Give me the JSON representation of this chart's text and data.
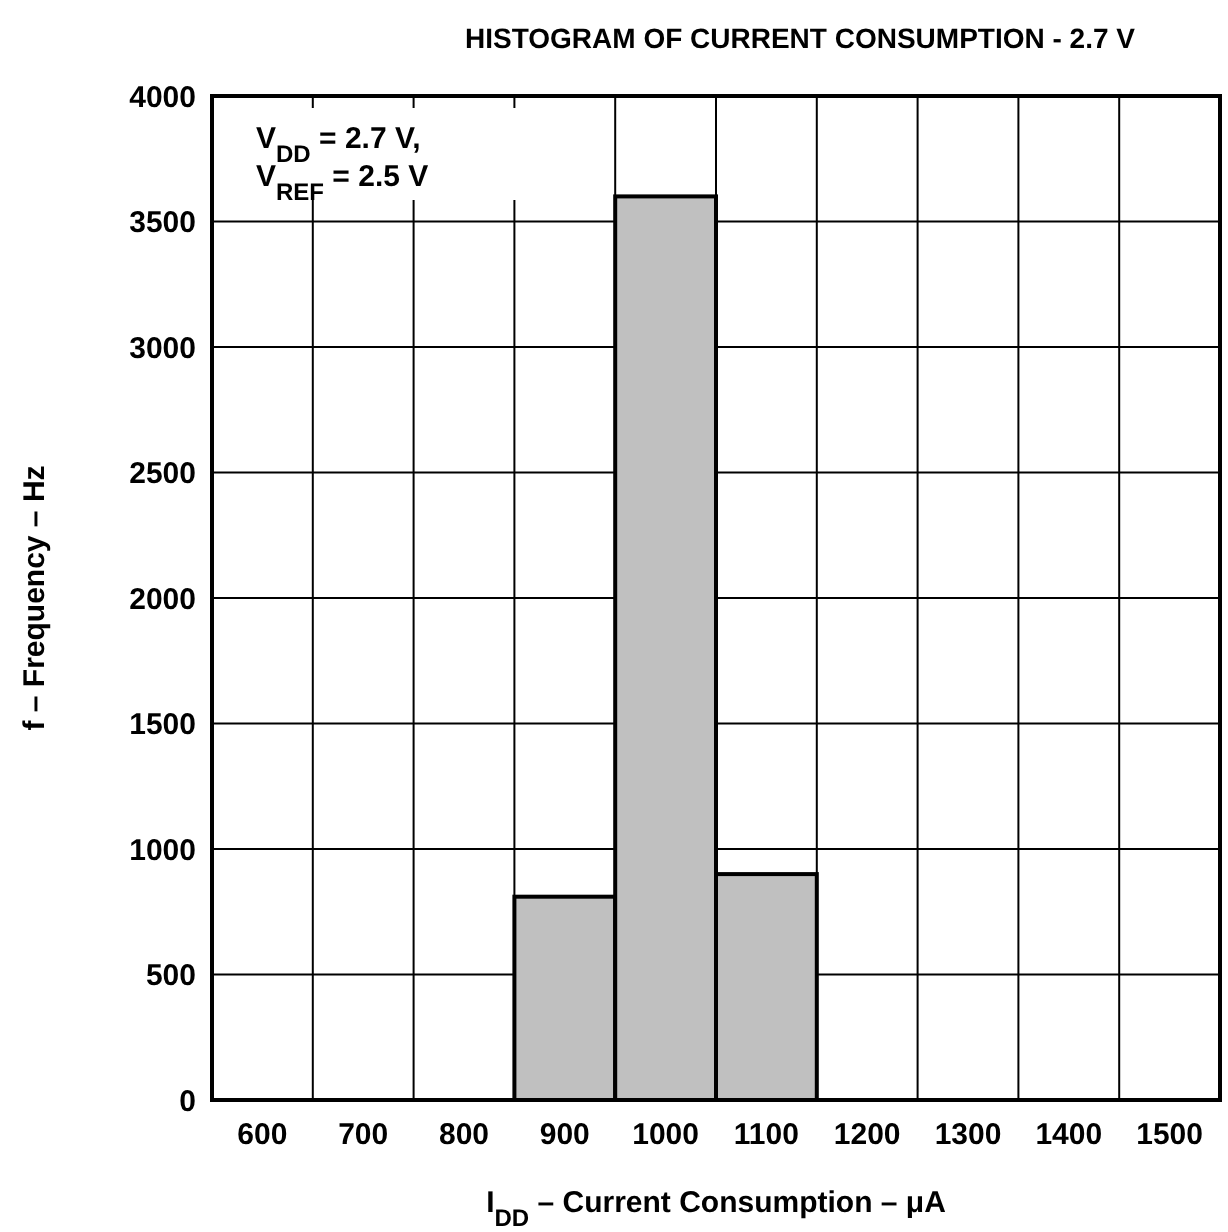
{
  "chart_data": {
    "type": "histogram",
    "title": "HISTOGRAM OF CURRENT CONSUMPTION - 2.7 V",
    "xlabel": "I$_{DD}$ – Current Consumption – μA",
    "ylabel": "f – Frequency – Hz",
    "annotations": [
      "V$_{DD}$ = 2.7 V,",
      "V$_{REF}$ = 2.5 V"
    ],
    "bins": [
      550,
      650,
      750,
      850,
      950,
      1050,
      1150,
      1250,
      1350,
      1450,
      1550
    ],
    "values": [
      0,
      0,
      0,
      810,
      3600,
      900,
      0,
      0,
      0,
      0
    ],
    "color": "#c0c0c0",
    "xlim": [
      550,
      1550
    ],
    "xticks": [
      {
        "value": 550,
        "label": null
      },
      600,
      {
        "value": 650,
        "label": null
      },
      700,
      {
        "value": 750,
        "label": null
      },
      800,
      {
        "value": 850,
        "label": null
      },
      900,
      {
        "value": 950,
        "label": null
      },
      1000,
      {
        "value": 1050,
        "label": null
      },
      1100,
      {
        "value": 1150,
        "label": null
      },
      1200,
      {
        "value": 1250,
        "label": null
      },
      1300,
      {
        "value": 1350,
        "label": null
      },
      1400,
      {
        "value": 1450,
        "label": null
      },
      1500,
      {
        "value": 1550,
        "label": null
      }
    ],
    "ylim": [
      0,
      4000
    ],
    "yticks": [
      0,
      500,
      1000,
      1500,
      2000,
      2500,
      3000,
      3500,
      4000
    ],
    "grid": true
  }
}
